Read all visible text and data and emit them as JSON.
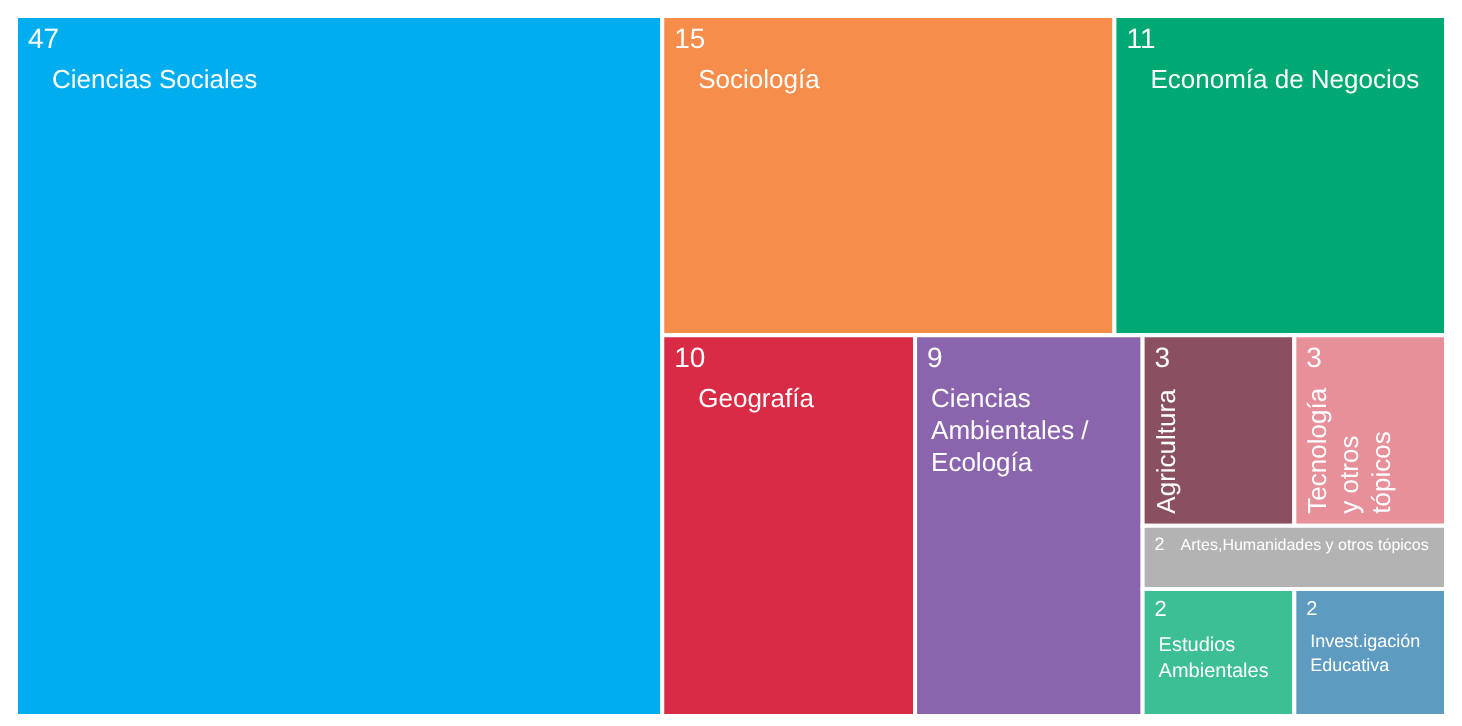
{
  "chart_data": {
    "type": "other",
    "data_labels": true,
    "categories": [
      "Ciencias Sociales",
      "Sociología",
      "Economía de Negocios",
      "Geografía",
      "Ciencias Ambientales / Ecología",
      "Agricultura",
      "Tecnología y otros tópicos",
      "Artes,Humanidades y otros tópicos",
      "Estudios Ambientales",
      "Invest.igación Educativa"
    ],
    "values": [
      47,
      15,
      11,
      10,
      9,
      3,
      3,
      2,
      2,
      2
    ],
    "colors": [
      "#00aeef",
      "#f68d4a",
      "#00a874",
      "#d92b45",
      "#8a64ad",
      "#8a5060",
      "#e8909a",
      "#b3b3b3",
      "#3cbf95",
      "#5d9cc0"
    ]
  }
}
